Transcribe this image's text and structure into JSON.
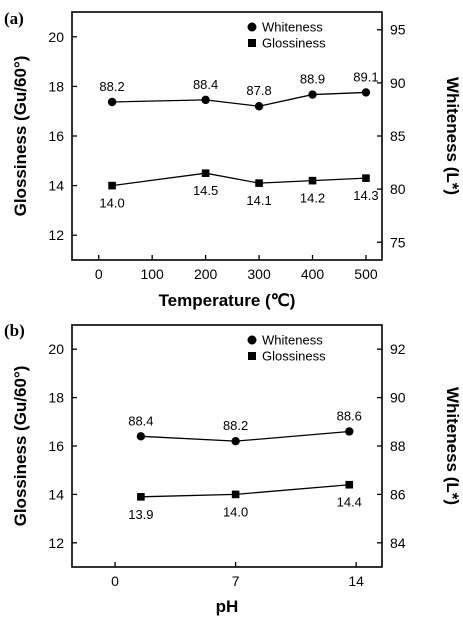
{
  "chart_data": [
    {
      "type": "line",
      "panel_label": "(a)",
      "xlabel": "Temperature (℃)",
      "ylabel_left": "Glossiness (Gu/60°)",
      "ylabel_right": "Whiteness (L*)",
      "xlim": [
        -50,
        530
      ],
      "xticks": [
        0,
        100,
        200,
        300,
        400,
        500
      ],
      "ylim_left": [
        11,
        21
      ],
      "yticks_left": [
        12,
        14,
        16,
        18,
        20
      ],
      "ylim_right": [
        73.33,
        96.67
      ],
      "yticks_right": [
        75,
        80,
        85,
        90,
        95
      ],
      "legend_position": "top-right",
      "series": [
        {
          "name": "Whiteness",
          "marker": "circle",
          "axis": "right",
          "x": [
            25,
            200,
            300,
            400,
            500
          ],
          "values": [
            88.2,
            88.4,
            87.8,
            88.9,
            89.1
          ],
          "labels": [
            "88.2",
            "88.4",
            "87.8",
            "88.9",
            "89.1"
          ],
          "label_position": "above"
        },
        {
          "name": "Glossiness",
          "marker": "square",
          "axis": "left",
          "x": [
            25,
            200,
            300,
            400,
            500
          ],
          "values": [
            14.0,
            14.5,
            14.1,
            14.2,
            14.3
          ],
          "labels": [
            "14.0",
            "14.5",
            "14.1",
            "14.2",
            "14.3"
          ],
          "label_position": "below"
        }
      ]
    },
    {
      "type": "line",
      "panel_label": "(b)",
      "xlabel": "pH",
      "ylabel_left": "Glossiness (Gu/60°)",
      "ylabel_right": "Whiteness (L*)",
      "xlim": [
        -2.5,
        15.5
      ],
      "xticks": [
        0,
        7,
        14
      ],
      "ylim_left": [
        11,
        21
      ],
      "yticks_left": [
        12,
        14,
        16,
        18,
        20
      ],
      "ylim_right": [
        83,
        93
      ],
      "yticks_right": [
        84,
        86,
        88,
        90,
        92
      ],
      "legend_position": "top-right",
      "series": [
        {
          "name": "Whiteness",
          "marker": "circle",
          "axis": "right",
          "x": [
            1.5,
            7,
            13.6
          ],
          "values": [
            88.4,
            88.2,
            88.6
          ],
          "labels": [
            "88.4",
            "88.2",
            "88.6"
          ],
          "label_position": "above"
        },
        {
          "name": "Glossiness",
          "marker": "square",
          "axis": "left",
          "x": [
            1.5,
            7,
            13.6
          ],
          "values": [
            13.9,
            14.0,
            14.4
          ],
          "labels": [
            "13.9",
            "14.0",
            "14.4"
          ],
          "label_position": "below"
        }
      ]
    }
  ]
}
